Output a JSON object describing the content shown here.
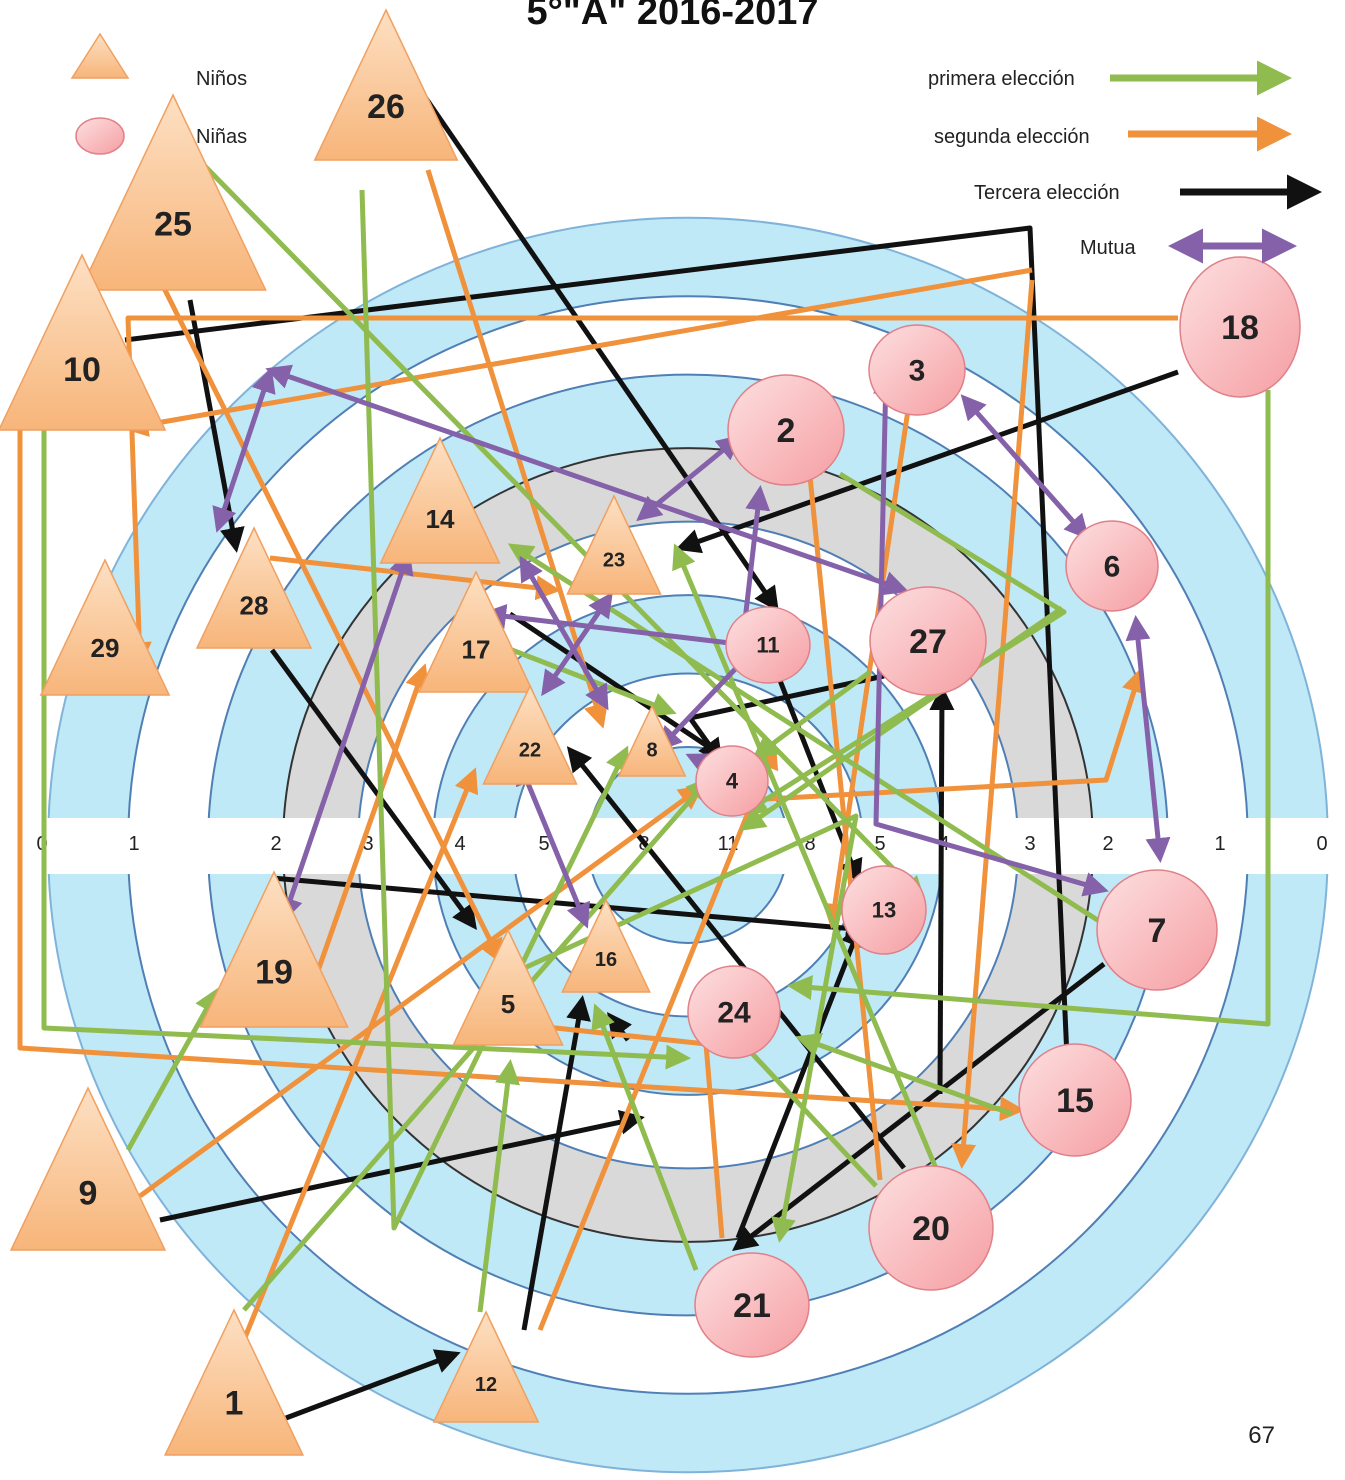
{
  "title": "5°\"A\" 2016-2017",
  "page_number": "67",
  "legend": {
    "boys": "Niños",
    "girls": "Niñas",
    "first": "primera elección",
    "second": "segunda elección",
    "third": "Tercera elección",
    "mutual": "Mutua"
  },
  "colors": {
    "first": "#8fbb4f",
    "second": "#f0913c",
    "third": "#111111",
    "mutual": "#8461a8",
    "boy_fill": "#fbc58f",
    "girl_fill": "#f7aeb0"
  },
  "scale_labels": [
    "0",
    "1",
    "2",
    "3",
    "4",
    "5",
    "8",
    "11",
    "8",
    "5",
    "4",
    "3",
    "2",
    "1",
    "0"
  ],
  "boys": [
    "26",
    "25",
    "10",
    "29",
    "28",
    "14",
    "23",
    "17",
    "22",
    "8",
    "19",
    "16",
    "5",
    "9",
    "12",
    "1"
  ],
  "girls": [
    "18",
    "3",
    "2",
    "6",
    "27",
    "11",
    "4",
    "13",
    "7",
    "24",
    "15",
    "20",
    "21"
  ]
}
